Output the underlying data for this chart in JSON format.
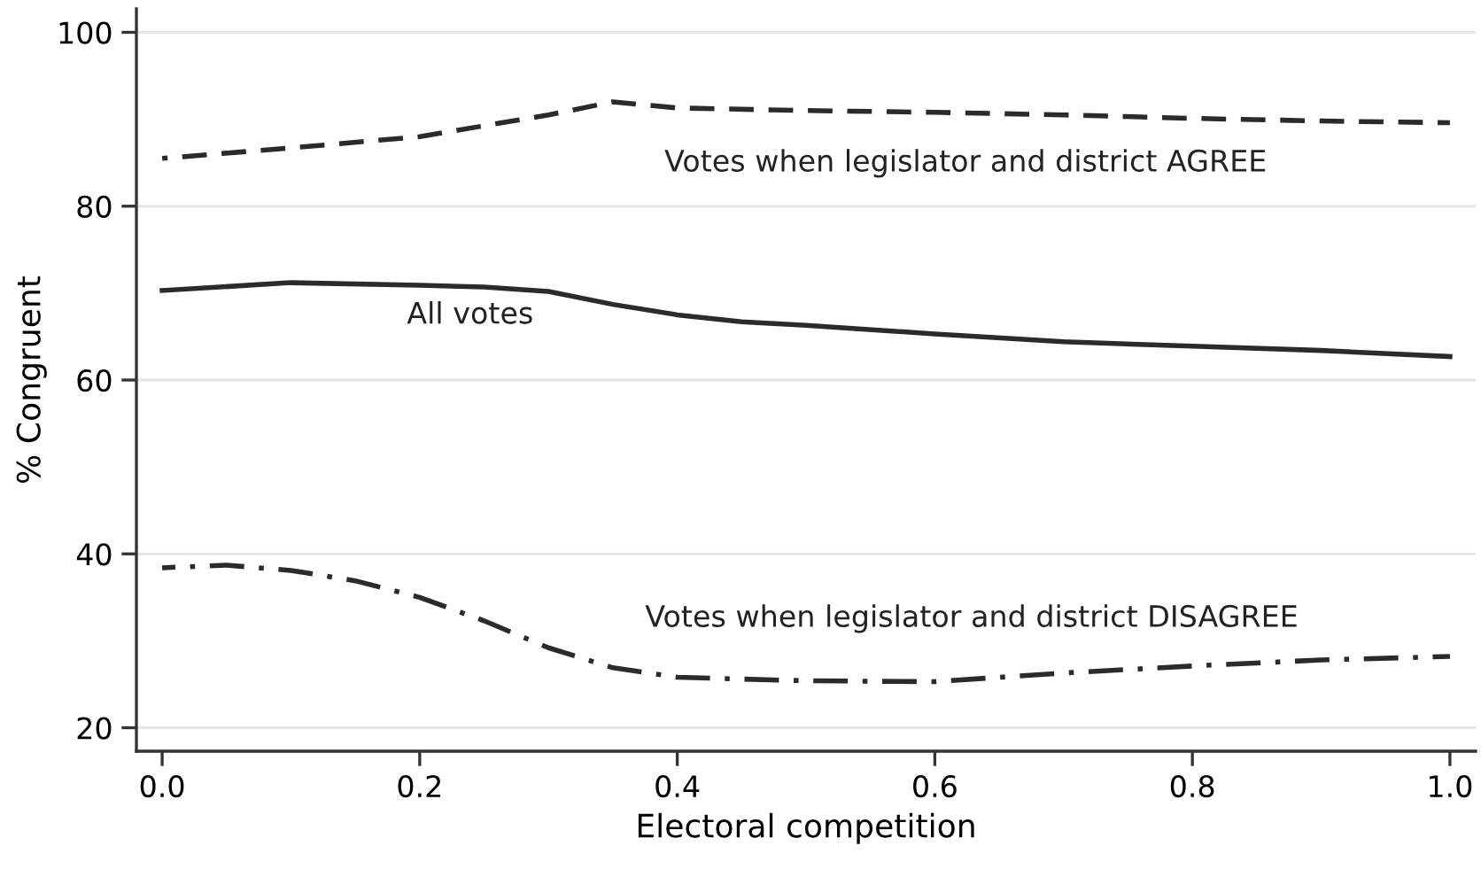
{
  "chart_data": {
    "type": "line",
    "xlabel": "Electoral competition",
    "ylabel": "% Congruent",
    "xlim": [
      -0.02,
      1.02
    ],
    "ylim": [
      17.3,
      102.7
    ],
    "xticks": [
      {
        "value": 0,
        "label": "0.0"
      },
      {
        "value": 0.2,
        "label": "0.2"
      },
      {
        "value": 0.4,
        "label": "0.4"
      },
      {
        "value": 0.6,
        "label": "0.6"
      },
      {
        "value": 0.8,
        "label": "0.8"
      },
      {
        "value": 1.0,
        "label": "1.0"
      }
    ],
    "yticks": [
      20,
      40,
      60,
      80,
      100
    ],
    "grid": "y",
    "legend": false,
    "marker": "none",
    "series": [
      {
        "name": "Votes when legislator and district AGREE",
        "color": "#2b2b2b",
        "line_style": "dashed",
        "x": [
          0,
          0.1,
          0.2,
          0.3,
          0.35,
          0.4,
          0.5,
          0.6,
          0.7,
          0.8,
          0.9,
          1.0
        ],
        "values": [
          85.5,
          86.7,
          88.0,
          90.5,
          92.0,
          91.3,
          91.0,
          90.8,
          90.5,
          90.1,
          89.8,
          89.6
        ]
      },
      {
        "name": "All votes",
        "color": "#2b2b2b",
        "line_style": "solid",
        "x": [
          0,
          0.1,
          0.2,
          0.25,
          0.3,
          0.35,
          0.4,
          0.45,
          0.5,
          0.6,
          0.7,
          0.8,
          0.9,
          1.0
        ],
        "values": [
          70.3,
          71.2,
          70.9,
          70.7,
          70.2,
          68.7,
          67.5,
          66.7,
          66.3,
          65.3,
          64.4,
          63.9,
          63.4,
          62.7
        ]
      },
      {
        "name": "Votes when legislator and district DISAGREE",
        "color": "#2b2b2b",
        "line_style": "dashdot",
        "x": [
          0,
          0.05,
          0.1,
          0.15,
          0.2,
          0.25,
          0.3,
          0.35,
          0.4,
          0.5,
          0.6,
          0.7,
          0.8,
          0.9,
          1.0
        ],
        "values": [
          38.4,
          38.7,
          38.1,
          36.9,
          35.0,
          32.3,
          29.2,
          26.9,
          25.8,
          25.4,
          25.3,
          26.3,
          27.1,
          27.8,
          28.2
        ]
      }
    ]
  }
}
